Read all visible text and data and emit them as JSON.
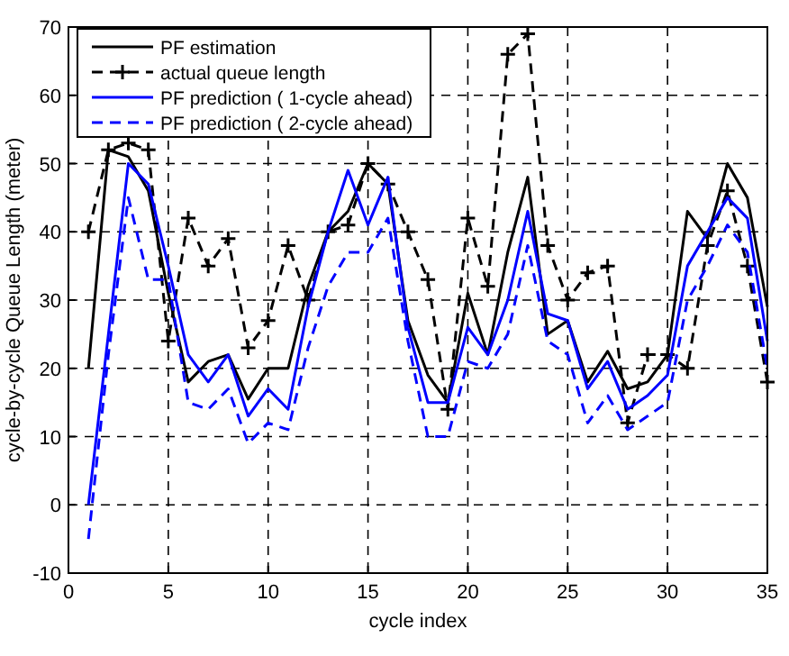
{
  "chart_data": {
    "type": "line",
    "xlabel": "cycle index",
    "ylabel": "cycle-by-cycle Queue Length (meter)",
    "x": [
      1,
      2,
      3,
      4,
      5,
      6,
      7,
      8,
      9,
      10,
      11,
      12,
      13,
      14,
      15,
      16,
      17,
      18,
      19,
      20,
      21,
      22,
      23,
      24,
      25,
      26,
      27,
      28,
      29,
      30,
      31,
      32,
      33,
      34,
      35
    ],
    "series": [
      {
        "name": "PF estimation",
        "color": "#000000",
        "line_style": "solid",
        "marker": "none",
        "values": [
          20,
          52,
          51,
          46,
          31,
          18,
          21,
          22,
          15.5,
          20,
          20,
          32,
          40,
          43,
          50,
          47,
          27,
          19,
          15,
          31,
          22,
          37,
          48,
          25,
          27,
          18,
          22.5,
          17,
          18,
          22,
          43,
          39,
          50,
          45,
          29
        ]
      },
      {
        "name": "actual queue length",
        "color": "#000000",
        "line_style": "dashed",
        "marker": "cross",
        "values": [
          40,
          52,
          53,
          52,
          24,
          42,
          35,
          39,
          23,
          27,
          38,
          30,
          40,
          41,
          50,
          47,
          40,
          33,
          14,
          42,
          32,
          66,
          69,
          38,
          30,
          34,
          35,
          12,
          22,
          22,
          20,
          38,
          46,
          35,
          18
        ]
      },
      {
        "name": "PF prediction ( 1-cycle ahead)",
        "color": "#0000ff",
        "line_style": "solid",
        "marker": "none",
        "values": [
          0,
          25,
          50,
          47,
          35,
          22,
          18,
          22,
          13,
          17,
          14,
          29,
          40,
          49,
          41,
          48,
          26,
          15,
          15,
          26,
          22,
          30,
          43,
          28,
          27,
          17,
          21,
          14,
          16,
          19,
          35,
          40,
          45,
          42,
          24
        ]
      },
      {
        "name": "PF prediction ( 2-cycle ahead)",
        "color": "#0000ff",
        "line_style": "dashed",
        "marker": "none",
        "values": [
          -5,
          22,
          45,
          33,
          33,
          15,
          14,
          17,
          9,
          12,
          11,
          23,
          32,
          37,
          37,
          42,
          24,
          10,
          10,
          21,
          20,
          25,
          38,
          24,
          22,
          12,
          16,
          11,
          13,
          15,
          30,
          35,
          41,
          37,
          20
        ]
      }
    ],
    "xlim": [
      0,
      35
    ],
    "xticks": [
      0,
      5,
      10,
      15,
      20,
      25,
      30,
      35
    ],
    "ylim": [
      -10,
      70
    ],
    "yticks": [
      -10,
      0,
      10,
      20,
      30,
      40,
      50,
      60,
      70
    ],
    "grid": true,
    "legend": "top left"
  }
}
